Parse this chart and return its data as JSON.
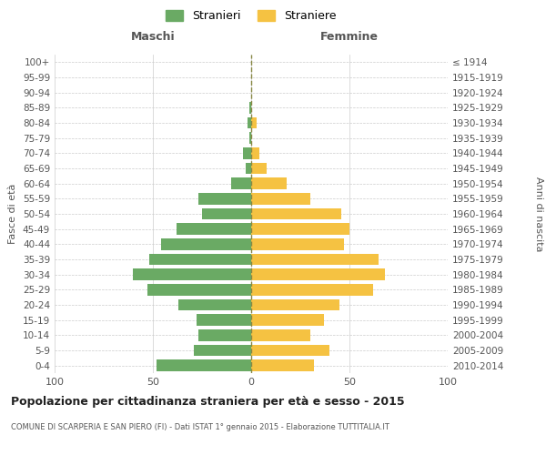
{
  "age_groups": [
    "0-4",
    "5-9",
    "10-14",
    "15-19",
    "20-24",
    "25-29",
    "30-34",
    "35-39",
    "40-44",
    "45-49",
    "50-54",
    "55-59",
    "60-64",
    "65-69",
    "70-74",
    "75-79",
    "80-84",
    "85-89",
    "90-94",
    "95-99",
    "100+"
  ],
  "birth_years": [
    "2010-2014",
    "2005-2009",
    "2000-2004",
    "1995-1999",
    "1990-1994",
    "1985-1989",
    "1980-1984",
    "1975-1979",
    "1970-1974",
    "1965-1969",
    "1960-1964",
    "1955-1959",
    "1950-1954",
    "1945-1949",
    "1940-1944",
    "1935-1939",
    "1930-1934",
    "1925-1929",
    "1920-1924",
    "1915-1919",
    "≤ 1914"
  ],
  "maschi": [
    48,
    29,
    27,
    28,
    37,
    53,
    60,
    52,
    46,
    38,
    25,
    27,
    10,
    3,
    4,
    1,
    2,
    1,
    0,
    0,
    0
  ],
  "femmine": [
    32,
    40,
    30,
    37,
    45,
    62,
    68,
    65,
    47,
    50,
    46,
    30,
    18,
    8,
    4,
    0,
    3,
    0,
    0,
    0,
    0
  ],
  "male_color": "#6aaa64",
  "female_color": "#f5c242",
  "title": "Popolazione per cittadinanza straniera per età e sesso - 2015",
  "subtitle": "COMUNE DI SCARPERIA E SAN PIERO (FI) - Dati ISTAT 1° gennaio 2015 - Elaborazione TUTTITALIA.IT",
  "ylabel_left": "Fasce di età",
  "ylabel_right": "Anni di nascita",
  "xlabel_left": "Maschi",
  "xlabel_right": "Femmine",
  "legend_maschi": "Stranieri",
  "legend_femmine": "Straniere",
  "xlim": 100,
  "background_color": "#ffffff",
  "grid_color": "#cccccc",
  "text_color": "#555555",
  "center_line_color": "#888844"
}
